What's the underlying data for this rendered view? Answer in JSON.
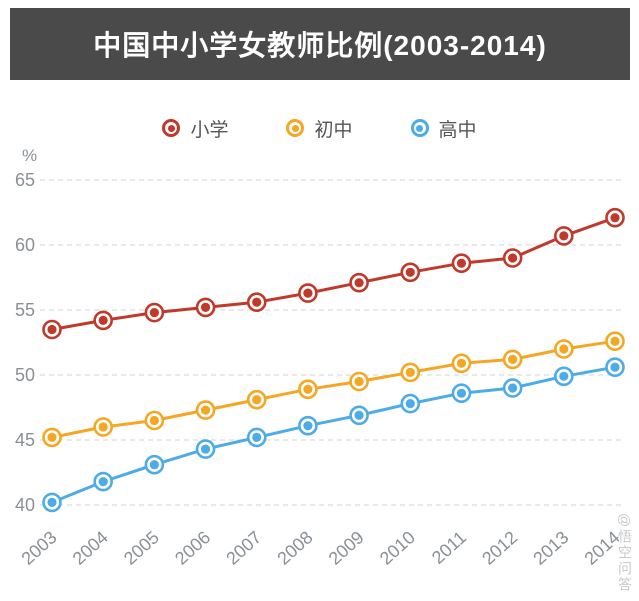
{
  "header": {
    "title": "中国中小学女教师比例(2003-2014)"
  },
  "watermark": {
    "text": "@悟空问答"
  },
  "chart_data": {
    "type": "line",
    "title": "中国中小学女教师比例(2003-2014)",
    "xlabel": "",
    "ylabel": "%",
    "x": [
      2003,
      2004,
      2005,
      2006,
      2007,
      2008,
      2009,
      2010,
      2011,
      2012,
      2013,
      2014
    ],
    "ylim": [
      40,
      65
    ],
    "yticks": [
      40,
      45,
      50,
      55,
      60,
      65
    ],
    "grid": true,
    "legend_position": "top",
    "series": [
      {
        "name": "小学",
        "slug": "primary-school",
        "color": "#c0392b",
        "values": [
          53.5,
          54.2,
          54.8,
          55.2,
          55.6,
          56.3,
          57.1,
          57.9,
          58.6,
          59.0,
          60.7,
          62.1
        ]
      },
      {
        "name": "初中",
        "slug": "junior-high",
        "color": "#f5a623",
        "values": [
          45.2,
          46.0,
          46.5,
          47.3,
          48.1,
          48.9,
          49.5,
          50.2,
          50.9,
          51.2,
          52.0,
          52.6
        ]
      },
      {
        "name": "高中",
        "slug": "senior-high",
        "color": "#4dabe8",
        "values": [
          40.2,
          41.8,
          43.1,
          44.3,
          45.2,
          46.1,
          46.9,
          47.8,
          48.6,
          49.0,
          49.9,
          50.6
        ]
      }
    ],
    "axis_text_color": "#8a9096",
    "gridline_color": "#dcdcdc"
  }
}
